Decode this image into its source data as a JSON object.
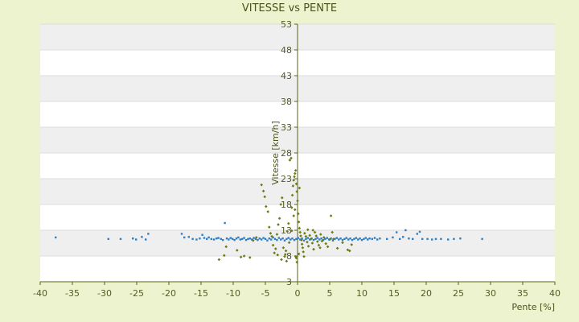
{
  "chart_data": {
    "type": "scatter",
    "title": "VITESSE vs PENTE",
    "xlabel": "Pente [%]",
    "ylabel": "Vitesse [km/h]",
    "xlim": [
      -40,
      40
    ],
    "ylim": [
      3,
      53
    ],
    "x_ticks": [
      -40,
      -35,
      -30,
      -25,
      -20,
      -15,
      -10,
      -5,
      0,
      5,
      10,
      15,
      20,
      25,
      30,
      35,
      40
    ],
    "y_ticks": [
      3,
      8,
      13,
      18,
      23,
      28,
      33,
      38,
      43,
      48,
      53
    ],
    "x_tick_labels": [
      "-40",
      "-35",
      "-30",
      "-25",
      "-20",
      "-15",
      "-10",
      "-5",
      "0",
      "5",
      "10",
      "15",
      "20",
      "25",
      "30",
      "35",
      "40"
    ],
    "y_tick_labels": [
      "3",
      "8",
      "13",
      "18",
      "23",
      "28",
      "33",
      "38",
      "43",
      "48",
      "53"
    ],
    "grid": "horizontal bands",
    "legend": "none",
    "colors": {
      "page_bg": "#eef3cf",
      "band_light": "#ffffff",
      "band_dark": "#efefef",
      "axis": "#5a6118",
      "blue_series": "#2e7fc8",
      "olive_series": "#6b7a12"
    },
    "series": [
      {
        "marker": "blue-dot",
        "points": [
          [
            -37.6,
            11.6
          ],
          [
            -29.4,
            11.3
          ],
          [
            -27.5,
            11.3
          ],
          [
            -25.6,
            11.4
          ],
          [
            -25.1,
            11.2
          ],
          [
            -24.2,
            11.7
          ],
          [
            -23.6,
            11.2
          ],
          [
            -23.2,
            12.3
          ],
          [
            -18.0,
            12.3
          ],
          [
            -17.6,
            11.6
          ],
          [
            -16.9,
            11.7
          ],
          [
            -16.3,
            11.3
          ],
          [
            -15.7,
            11.2
          ],
          [
            -15.2,
            11.4
          ],
          [
            -14.8,
            12.1
          ],
          [
            -14.5,
            11.5
          ],
          [
            -14.1,
            11.3
          ],
          [
            -13.8,
            11.6
          ],
          [
            -13.4,
            11.3
          ],
          [
            -13.0,
            11.2
          ],
          [
            -12.6,
            11.4
          ],
          [
            -12.3,
            11.5
          ],
          [
            -11.9,
            11.3
          ],
          [
            -11.6,
            11.1
          ],
          [
            -11.3,
            14.4
          ],
          [
            -11.0,
            11.4
          ],
          [
            -10.7,
            11.2
          ],
          [
            -10.4,
            11.5
          ],
          [
            -10.1,
            11.3
          ],
          [
            -9.8,
            11.1
          ],
          [
            -9.5,
            11.4
          ],
          [
            -9.2,
            11.6
          ],
          [
            -8.9,
            11.2
          ],
          [
            -8.6,
            11.3
          ],
          [
            -8.3,
            11.5
          ],
          [
            -8.0,
            11.1
          ],
          [
            -7.7,
            11.3
          ],
          [
            -7.4,
            11.4
          ],
          [
            -7.1,
            11.2
          ],
          [
            -6.8,
            11.5
          ],
          [
            -6.5,
            11.3
          ],
          [
            -6.2,
            11.1
          ],
          [
            -5.9,
            11.4
          ],
          [
            -5.6,
            11.2
          ],
          [
            -5.3,
            11.5
          ],
          [
            -5.0,
            11.3
          ],
          [
            -4.7,
            11.0
          ],
          [
            -4.4,
            11.4
          ],
          [
            -4.1,
            11.2
          ],
          [
            -3.8,
            11.6
          ],
          [
            -3.5,
            11.3
          ],
          [
            -3.2,
            11.1
          ],
          [
            -2.9,
            11.5
          ],
          [
            -2.6,
            11.2
          ],
          [
            -2.3,
            11.4
          ],
          [
            -2.0,
            11.0
          ],
          [
            -1.7,
            11.3
          ],
          [
            -1.4,
            11.5
          ],
          [
            -1.1,
            11.2
          ],
          [
            -0.8,
            11.4
          ],
          [
            -0.5,
            11.1
          ],
          [
            -0.2,
            11.3
          ],
          [
            0.1,
            11.5
          ],
          [
            0.4,
            11.2
          ],
          [
            0.7,
            11.4
          ],
          [
            1.0,
            11.0
          ],
          [
            1.3,
            11.3
          ],
          [
            1.6,
            11.5
          ],
          [
            1.9,
            11.2
          ],
          [
            2.2,
            11.4
          ],
          [
            2.5,
            11.1
          ],
          [
            2.8,
            11.3
          ],
          [
            3.1,
            11.5
          ],
          [
            3.4,
            11.2
          ],
          [
            3.7,
            11.4
          ],
          [
            4.0,
            11.1
          ],
          [
            4.3,
            11.3
          ],
          [
            4.6,
            11.5
          ],
          [
            4.9,
            11.2
          ],
          [
            5.2,
            11.4
          ],
          [
            5.5,
            11.0
          ],
          [
            5.8,
            11.3
          ],
          [
            6.1,
            11.5
          ],
          [
            6.4,
            11.2
          ],
          [
            6.7,
            11.4
          ],
          [
            7.0,
            11.1
          ],
          [
            7.3,
            11.3
          ],
          [
            7.6,
            11.5
          ],
          [
            7.9,
            11.2
          ],
          [
            8.2,
            11.4
          ],
          [
            8.5,
            11.1
          ],
          [
            8.8,
            11.3
          ],
          [
            9.1,
            11.5
          ],
          [
            9.4,
            11.2
          ],
          [
            9.7,
            11.4
          ],
          [
            10.0,
            11.1
          ],
          [
            10.3,
            11.3
          ],
          [
            10.6,
            11.5
          ],
          [
            10.9,
            11.2
          ],
          [
            11.2,
            11.4
          ],
          [
            11.6,
            11.3
          ],
          [
            12.0,
            11.5
          ],
          [
            12.4,
            11.2
          ],
          [
            12.8,
            11.4
          ],
          [
            13.9,
            11.3
          ],
          [
            14.8,
            11.6
          ],
          [
            15.4,
            12.6
          ],
          [
            15.9,
            11.3
          ],
          [
            16.4,
            11.7
          ],
          [
            16.8,
            13.0
          ],
          [
            17.3,
            11.4
          ],
          [
            17.9,
            11.3
          ],
          [
            18.6,
            12.3
          ],
          [
            19.0,
            12.7
          ],
          [
            19.4,
            11.3
          ],
          [
            20.2,
            11.3
          ],
          [
            20.9,
            11.2
          ],
          [
            21.5,
            11.3
          ],
          [
            22.3,
            11.3
          ],
          [
            23.4,
            11.2
          ],
          [
            24.3,
            11.3
          ],
          [
            25.3,
            11.4
          ],
          [
            28.7,
            11.3
          ]
        ]
      },
      {
        "marker": "olive-diamond",
        "points": [
          [
            -12.2,
            7.3
          ],
          [
            -11.4,
            8.1
          ],
          [
            -11.1,
            9.8
          ],
          [
            -9.4,
            9.1
          ],
          [
            -8.8,
            7.8
          ],
          [
            -8.3,
            8.0
          ],
          [
            -7.4,
            7.7
          ],
          [
            -6.9,
            11.0
          ],
          [
            -6.4,
            11.6
          ],
          [
            -5.6,
            21.8
          ],
          [
            -5.3,
            20.6
          ],
          [
            -5.1,
            19.5
          ],
          [
            -4.9,
            17.6
          ],
          [
            -4.6,
            16.6
          ],
          [
            -4.4,
            13.6
          ],
          [
            -4.2,
            12.4
          ],
          [
            -4.0,
            11.8
          ],
          [
            -3.8,
            10.1
          ],
          [
            -3.6,
            8.6
          ],
          [
            -3.4,
            9.4
          ],
          [
            -3.2,
            12.2
          ],
          [
            -3.0,
            14.1
          ],
          [
            -2.8,
            15.3
          ],
          [
            -2.6,
            18.0
          ],
          [
            -2.4,
            19.3
          ],
          [
            -2.2,
            9.6
          ],
          [
            -2.0,
            7.9
          ],
          [
            -1.9,
            8.3
          ],
          [
            -1.8,
            9.0
          ],
          [
            -1.6,
            12.8
          ],
          [
            -1.4,
            14.3
          ],
          [
            -1.3,
            10.6
          ],
          [
            -1.2,
            26.6
          ],
          [
            -1.0,
            27.0
          ],
          [
            -0.9,
            17.4
          ],
          [
            -0.8,
            19.8
          ],
          [
            -0.7,
            21.6
          ],
          [
            -0.6,
            22.7
          ],
          [
            -0.5,
            23.4
          ],
          [
            -0.4,
            24.0
          ],
          [
            -0.3,
            24.6
          ],
          [
            -0.2,
            22.0
          ],
          [
            -0.1,
            20.5
          ],
          [
            0.0,
            18.7
          ],
          [
            0.1,
            16.2
          ],
          [
            0.2,
            14.6
          ],
          [
            0.3,
            13.4
          ],
          [
            0.4,
            12.6
          ],
          [
            0.5,
            11.9
          ],
          [
            0.6,
            11.1
          ],
          [
            0.7,
            10.3
          ],
          [
            0.8,
            9.6
          ],
          [
            0.9,
            8.8
          ],
          [
            1.0,
            7.9
          ],
          [
            1.1,
            12.4
          ],
          [
            1.3,
            11.8
          ],
          [
            1.5,
            10.7
          ],
          [
            1.7,
            9.9
          ],
          [
            1.9,
            12.0
          ],
          [
            2.1,
            11.3
          ],
          [
            2.3,
            10.5
          ],
          [
            2.5,
            9.3
          ],
          [
            2.7,
            12.6
          ],
          [
            2.9,
            11.9
          ],
          [
            3.1,
            10.8
          ],
          [
            3.3,
            10.1
          ],
          [
            3.5,
            9.6
          ],
          [
            3.8,
            10.9
          ],
          [
            4.1,
            11.6
          ],
          [
            4.4,
            10.4
          ],
          [
            4.7,
            9.8
          ],
          [
            5.0,
            11.2
          ],
          [
            5.2,
            15.8
          ],
          [
            5.4,
            12.6
          ],
          [
            5.6,
            11.3
          ],
          [
            6.2,
            9.5
          ],
          [
            7.0,
            10.6
          ],
          [
            7.8,
            9.2
          ],
          [
            8.1,
            9.0
          ],
          [
            8.4,
            10.2
          ],
          [
            -0.3,
            7.9
          ],
          [
            -0.2,
            7.6
          ],
          [
            -0.1,
            6.8
          ],
          [
            0.2,
            8.4
          ],
          [
            -2.5,
            7.3
          ],
          [
            -1.7,
            7.0
          ],
          [
            -3.1,
            8.2
          ],
          [
            -0.6,
            15.8
          ],
          [
            -0.4,
            17.0
          ],
          [
            0.3,
            21.2
          ],
          [
            -0.9,
            12.9
          ],
          [
            1.6,
            13.1
          ],
          [
            2.4,
            13.0
          ],
          [
            3.6,
            12.2
          ]
        ]
      }
    ]
  }
}
